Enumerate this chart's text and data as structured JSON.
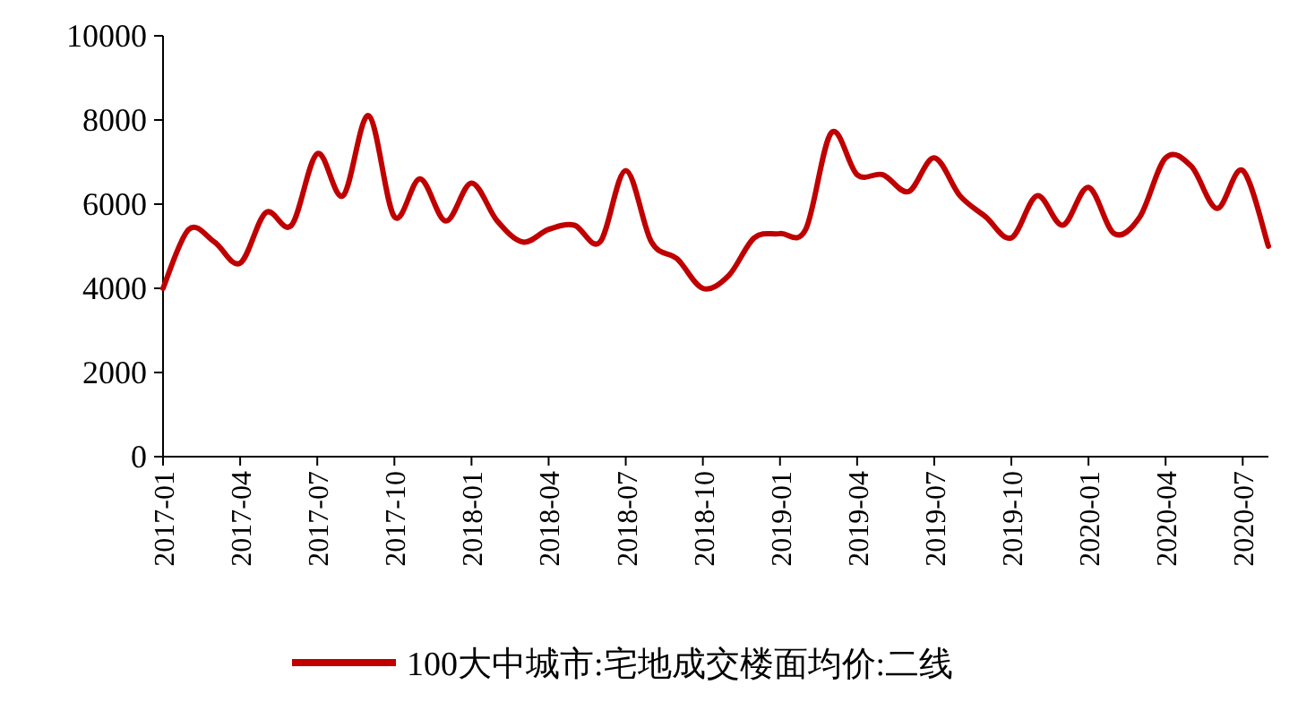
{
  "chart_data": {
    "type": "line",
    "x": [
      "2017-01",
      "2017-02",
      "2017-03",
      "2017-04",
      "2017-05",
      "2017-06",
      "2017-07",
      "2017-08",
      "2017-09",
      "2017-10",
      "2017-11",
      "2017-12",
      "2018-01",
      "2018-02",
      "2018-03",
      "2018-04",
      "2018-05",
      "2018-06",
      "2018-07",
      "2018-08",
      "2018-09",
      "2018-10",
      "2018-11",
      "2018-12",
      "2019-01",
      "2019-02",
      "2019-03",
      "2019-04",
      "2019-05",
      "2019-06",
      "2019-07",
      "2019-08",
      "2019-09",
      "2019-10",
      "2019-11",
      "2019-12",
      "2020-01",
      "2020-02",
      "2020-03",
      "2020-04",
      "2020-05",
      "2020-06",
      "2020-07",
      "2020-08"
    ],
    "series": [
      {
        "name": "100大中城市:宅地成交楼面均价:二线",
        "color": "#c00000",
        "values": [
          4000,
          5400,
          5100,
          4600,
          5800,
          5500,
          7200,
          6200,
          8100,
          5700,
          6600,
          5600,
          6500,
          5600,
          5100,
          5400,
          5500,
          5100,
          6800,
          5100,
          4700,
          4000,
          4300,
          5200,
          5300,
          5400,
          7700,
          6700,
          6700,
          6300,
          7100,
          6200,
          5700,
          5200,
          6200,
          5500,
          6400,
          5300,
          5700,
          7100,
          6900,
          5900,
          6800,
          5000
        ]
      }
    ],
    "xlim": [
      "2017-01",
      "2020-08"
    ],
    "ylim": [
      0,
      10000
    ],
    "yticks": [
      0,
      2000,
      4000,
      6000,
      8000,
      10000
    ],
    "xticks": [
      "2017-01",
      "2017-04",
      "2017-07",
      "2017-10",
      "2018-01",
      "2018-04",
      "2018-07",
      "2018-10",
      "2019-01",
      "2019-04",
      "2019-07",
      "2019-10",
      "2020-01",
      "2020-04",
      "2020-07"
    ],
    "legend": "bottom",
    "grid": false,
    "marker": "none",
    "line_style": "solid"
  }
}
